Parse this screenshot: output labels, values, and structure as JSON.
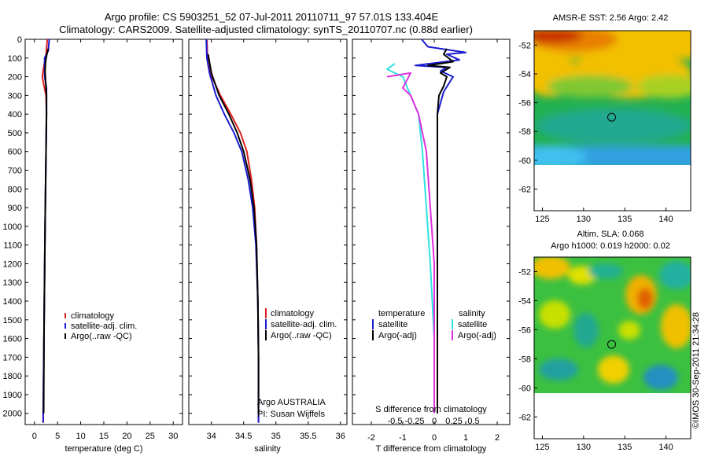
{
  "titles": {
    "line1": "Argo profile: CS 5903251_52 07-Jul-2011 20110711_97 57.01S 133.404E",
    "line2": "Climatology: CARS2009. Satellite-adjusted climatology: synTS_20110707.nc (0.88d earlier)"
  },
  "colors": {
    "climatology": "#e02020",
    "satellite": "#1a1ad0",
    "argo": "#000000",
    "sal_satellite": "#30e0e0",
    "sal_argo": "#e030e0"
  },
  "credit": "©IMOS 30-Sep-2011 21:34:28",
  "chart_data": [
    {
      "type": "line",
      "name": "temperature-profile",
      "xlabel": "temperature (deg C)",
      "ylabel": "depth",
      "xlim": [
        -2,
        32
      ],
      "ylim": [
        2060,
        0
      ],
      "xticks": [
        "0",
        "5",
        "10",
        "15",
        "20",
        "25",
        "30"
      ],
      "xtick_values": [
        0,
        5,
        10,
        15,
        20,
        25,
        30
      ],
      "yticks": [
        "0",
        "100",
        "200",
        "300",
        "400",
        "500",
        "600",
        "700",
        "800",
        "900",
        "1000",
        "1100",
        "1200",
        "1300",
        "1400",
        "1500",
        "1600",
        "1700",
        "1800",
        "1900",
        "2000"
      ],
      "ytick_values": [
        0,
        100,
        200,
        300,
        400,
        500,
        600,
        700,
        800,
        900,
        1000,
        1100,
        1200,
        1300,
        1400,
        1500,
        1600,
        1700,
        1800,
        1900,
        2000
      ],
      "legend": [
        "climatology",
        "satellite-adj. clim.",
        "Argo(..raw -QC)"
      ],
      "series": [
        {
          "name": "climatology",
          "color_key": "climatology",
          "points": [
            [
              2.8,
              0
            ],
            [
              2.5,
              80
            ],
            [
              2.0,
              150
            ],
            [
              1.7,
              200
            ],
            [
              2.0,
              240
            ],
            [
              2.5,
              300
            ],
            [
              2.6,
              400
            ],
            [
              2.5,
              600
            ],
            [
              2.3,
              1000
            ],
            [
              2.1,
              1500
            ],
            [
              1.9,
              2000
            ],
            [
              1.9,
              2050
            ]
          ]
        },
        {
          "name": "satellite-adj. clim.",
          "color_key": "satellite",
          "points": [
            [
              3.2,
              0
            ],
            [
              3.0,
              60
            ],
            [
              2.2,
              100
            ],
            [
              2.2,
              200
            ],
            [
              2.6,
              260
            ],
            [
              2.6,
              400
            ],
            [
              2.5,
              600
            ],
            [
              2.3,
              1000
            ],
            [
              2.1,
              1500
            ],
            [
              1.9,
              2000
            ],
            [
              1.9,
              2050
            ]
          ]
        },
        {
          "name": "Argo(..raw -QC)",
          "color_key": "argo",
          "points": [
            [
              3.0,
              50
            ],
            [
              2.7,
              80
            ],
            [
              2.4,
              120
            ],
            [
              2.3,
              170
            ],
            [
              2.4,
              220
            ],
            [
              2.6,
              300
            ],
            [
              2.6,
              400
            ],
            [
              2.5,
              600
            ],
            [
              2.3,
              1000
            ],
            [
              2.1,
              1500
            ],
            [
              2.0,
              2000
            ]
          ]
        }
      ]
    },
    {
      "type": "line",
      "name": "salinity-profile",
      "xlabel": "salinity",
      "xlim": [
        33.65,
        36.1
      ],
      "ylim": [
        2060,
        0
      ],
      "xticks": [
        "34",
        "34.5",
        "35",
        "35.5",
        "36"
      ],
      "xtick_values": [
        34,
        34.5,
        35,
        35.5,
        36
      ],
      "legend": [
        "climatology",
        "satellite-adj. clim.",
        "Argo(..raw -QC)"
      ],
      "annotation": [
        "Argo AUSTRALIA",
        "PI: Susan Wijffels"
      ],
      "series": [
        {
          "name": "climatology",
          "color_key": "climatology",
          "points": [
            [
              33.93,
              0
            ],
            [
              33.94,
              100
            ],
            [
              33.98,
              180
            ],
            [
              34.14,
              300
            ],
            [
              34.3,
              400
            ],
            [
              34.45,
              500
            ],
            [
              34.55,
              600
            ],
            [
              34.62,
              750
            ],
            [
              34.67,
              900
            ],
            [
              34.7,
              1100
            ],
            [
              34.72,
              1400
            ],
            [
              34.73,
              1700
            ],
            [
              34.73,
              2050
            ]
          ]
        },
        {
          "name": "satellite-adj. clim.",
          "color_key": "satellite",
          "points": [
            [
              33.92,
              0
            ],
            [
              33.93,
              100
            ],
            [
              33.97,
              180
            ],
            [
              34.07,
              300
            ],
            [
              34.2,
              400
            ],
            [
              34.35,
              500
            ],
            [
              34.47,
              600
            ],
            [
              34.57,
              750
            ],
            [
              34.64,
              900
            ],
            [
              34.69,
              1100
            ],
            [
              34.72,
              1400
            ],
            [
              34.73,
              1700
            ],
            [
              34.73,
              2050
            ]
          ]
        },
        {
          "name": "Argo(..raw -QC)",
          "color_key": "argo",
          "points": [
            [
              33.95,
              80
            ],
            [
              34.0,
              180
            ],
            [
              34.12,
              300
            ],
            [
              34.27,
              400
            ],
            [
              34.4,
              500
            ],
            [
              34.5,
              600
            ],
            [
              34.6,
              750
            ],
            [
              34.66,
              900
            ],
            [
              34.7,
              1100
            ],
            [
              34.72,
              1400
            ],
            [
              34.73,
              1700
            ],
            [
              34.73,
              2000
            ]
          ]
        }
      ]
    },
    {
      "type": "line",
      "name": "difference-profile",
      "xlabel": "T difference from climatology",
      "xlabel_top": "S difference from climatology",
      "xlim": [
        -2.6,
        2.4
      ],
      "ylim": [
        2060,
        0
      ],
      "xticks": [
        "-2",
        "-1",
        "0",
        "1",
        "2"
      ],
      "xtick_values": [
        -2,
        -1,
        0,
        1,
        2
      ],
      "s_xticks": [
        "-0.5",
        "-0.25",
        "0",
        "0.25",
        "0.5"
      ],
      "s_xtick_values": [
        -0.5,
        -0.25,
        0,
        0.25,
        0.5
      ],
      "legend_titles": [
        "temperature",
        "salinity"
      ],
      "legend_temperature": [
        "satellite",
        "Argo(-adj)"
      ],
      "legend_salinity": [
        "satellite",
        "Argo(-adj)"
      ],
      "series": [
        {
          "name": "T satellite",
          "color_key": "satellite",
          "points": [
            [
              -0.4,
              0
            ],
            [
              -0.2,
              40
            ],
            [
              1.0,
              70
            ],
            [
              0.4,
              80
            ],
            [
              0.8,
              110
            ],
            [
              -0.6,
              140
            ],
            [
              0.4,
              150
            ],
            [
              0.2,
              170
            ],
            [
              0.6,
              200
            ],
            [
              0.3,
              280
            ],
            [
              0.1,
              400
            ],
            [
              0.1,
              600
            ],
            [
              0.1,
              1000
            ],
            [
              0.1,
              1500
            ],
            [
              0.1,
              2000
            ]
          ]
        },
        {
          "name": "T Argo(-adj)",
          "color_key": "argo",
          "points": [
            [
              0.4,
              50
            ],
            [
              0.3,
              80
            ],
            [
              0.6,
              120
            ],
            [
              -0.2,
              140
            ],
            [
              0.5,
              150
            ],
            [
              0.2,
              180
            ],
            [
              0.4,
              200
            ],
            [
              0.3,
              250
            ],
            [
              0.15,
              300
            ],
            [
              0.1,
              400
            ],
            [
              0.1,
              600
            ],
            [
              0.1,
              1000
            ],
            [
              0.1,
              1500
            ],
            [
              0.1,
              2000
            ]
          ]
        },
        {
          "name": "S satellite",
          "color_key": "sal_satellite",
          "points": [
            [
              -0.5,
              130
            ],
            [
              -0.6,
              160
            ],
            [
              -0.4,
              200
            ],
            [
              -0.3,
              300
            ],
            [
              -0.2,
              400
            ],
            [
              -0.15,
              600
            ],
            [
              -0.1,
              900
            ],
            [
              -0.05,
              1200
            ],
            [
              0.0,
              1600
            ],
            [
              0.0,
              2000
            ]
          ]
        },
        {
          "name": "S Argo(-adj)",
          "color_key": "sal_argo",
          "points": [
            [
              -0.6,
              200
            ],
            [
              -0.3,
              180
            ],
            [
              -0.4,
              260
            ],
            [
              -0.3,
              300
            ],
            [
              -0.2,
              400
            ],
            [
              -0.1,
              600
            ],
            [
              -0.05,
              900
            ],
            [
              0.0,
              1200
            ],
            [
              0.0,
              1600
            ],
            [
              0.0,
              2000
            ]
          ]
        }
      ]
    },
    {
      "type": "heatmap",
      "name": "sst-map",
      "title": "AMSR-E SST: 2.56  Argo: 2.42",
      "xlim": [
        124,
        143
      ],
      "ylim": [
        -63.5,
        -51
      ],
      "xticks": [
        "125",
        "130",
        "135",
        "140"
      ],
      "xtick_values": [
        125,
        130,
        135,
        140
      ],
      "yticks": [
        "-52",
        "-54",
        "-56",
        "-58",
        "-60",
        "-62"
      ],
      "ytick_values": [
        -52,
        -54,
        -56,
        -58,
        -60,
        -62
      ],
      "data_extent_lat": [
        -60,
        -51
      ],
      "marker": {
        "lon": 133.404,
        "lat": -57.01
      }
    },
    {
      "type": "heatmap",
      "name": "sla-map",
      "title": "Altim. SLA: 0.068",
      "subtitle": "Argo h1000: 0.019  h2000: 0.02",
      "xlim": [
        124,
        143
      ],
      "ylim": [
        -63.5,
        -51
      ],
      "xticks": [
        "125",
        "130",
        "135",
        "140"
      ],
      "xtick_values": [
        125,
        130,
        135,
        140
      ],
      "yticks": [
        "-52",
        "-54",
        "-56",
        "-58",
        "-60",
        "-62"
      ],
      "ytick_values": [
        -52,
        -54,
        -56,
        -58,
        -60,
        -62
      ],
      "data_extent_lat": [
        -60,
        -51
      ],
      "marker": {
        "lon": 133.404,
        "lat": -57.01
      }
    }
  ]
}
